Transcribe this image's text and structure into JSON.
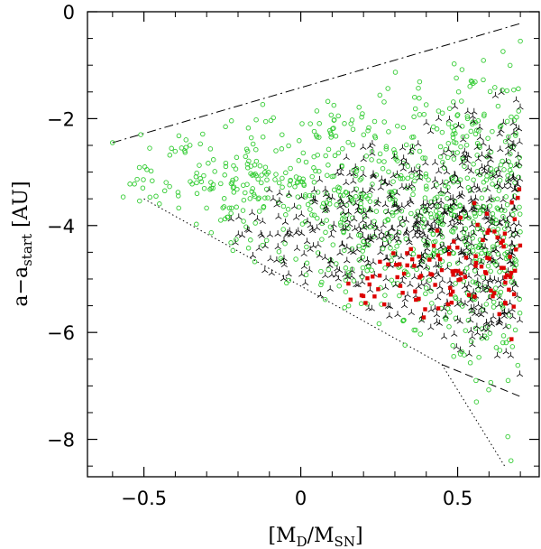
{
  "chart_data": {
    "type": "scatter",
    "title": "",
    "xlabel": {
      "main": "[M",
      "sub1": "D",
      "mid": "/M",
      "sub2": "SN",
      "end": "]"
    },
    "ylabel": {
      "main": "a−a",
      "sub": "start",
      "end": " [AU]"
    },
    "xlim": [
      -0.68,
      0.76
    ],
    "ylim": [
      -8.7,
      0
    ],
    "x_ticks": [
      -0.5,
      0,
      0.5
    ],
    "x_tick_labels": [
      "−0.5",
      "0",
      "0.5"
    ],
    "y_ticks": [
      0,
      -2,
      -4,
      -6,
      -8
    ],
    "y_tick_labels": [
      "0",
      "−2",
      "−4",
      "−6",
      "−8"
    ],
    "colors": {
      "circles": "#33cc33",
      "tripods": "#000000",
      "squares": "#dd0000",
      "lines": "#000000"
    },
    "lines": [
      {
        "name": "upper-dashdot-line",
        "style": "dashdot",
        "x": [
          -0.6,
          0.7
        ],
        "y": [
          -2.45,
          -0.22
        ]
      },
      {
        "name": "lower-dotted-line",
        "style": "dotted",
        "x": [
          -0.5,
          0.45,
          0.65
        ],
        "y": [
          -3.5,
          -6.6,
          -8.5
        ]
      },
      {
        "name": "lower-dashed-line",
        "style": "dashed",
        "x": [
          0.45,
          0.7
        ],
        "y": [
          -6.6,
          -7.2
        ]
      }
    ],
    "series": [
      {
        "name": "green-circles",
        "marker": "circle",
        "region": {
          "x": [
            -0.6,
            0.7
          ],
          "y_top_at_xmin": -2.4,
          "y_top_at_xmax": -0.4,
          "y_bottom_at_xmin": -3.4,
          "y_bottom_at_xmax": -7.6
        },
        "explicit_points": [
          {
            "x": -0.6,
            "y": -2.45
          },
          {
            "x": -0.51,
            "y": -2.3
          },
          {
            "x": -0.38,
            "y": -2.55
          },
          {
            "x": 0.7,
            "y": -0.55
          },
          {
            "x": 0.66,
            "y": -7.95
          },
          {
            "x": 0.67,
            "y": -8.4
          },
          {
            "x": 0.56,
            "y": -7.3
          },
          {
            "x": -0.24,
            "y": -2.15
          }
        ],
        "count": 900
      },
      {
        "name": "black-tripods",
        "marker": "tripod",
        "region": {
          "x": [
            -0.25,
            0.7
          ],
          "y_top_at_xmin": -3.5,
          "y_top_at_xmax": -1.0,
          "y_bottom_at_xmin": -4.7,
          "y_bottom_at_xmax": -7.1
        },
        "count": 650
      },
      {
        "name": "red-squares",
        "marker": "square",
        "region": {
          "x": [
            0.12,
            0.7
          ],
          "y_top_at_xmin": -5.0,
          "y_top_at_xmax": -2.9,
          "y_bottom_at_xmin": -5.6,
          "y_bottom_at_xmax": -6.3
        },
        "count": 110
      }
    ]
  }
}
